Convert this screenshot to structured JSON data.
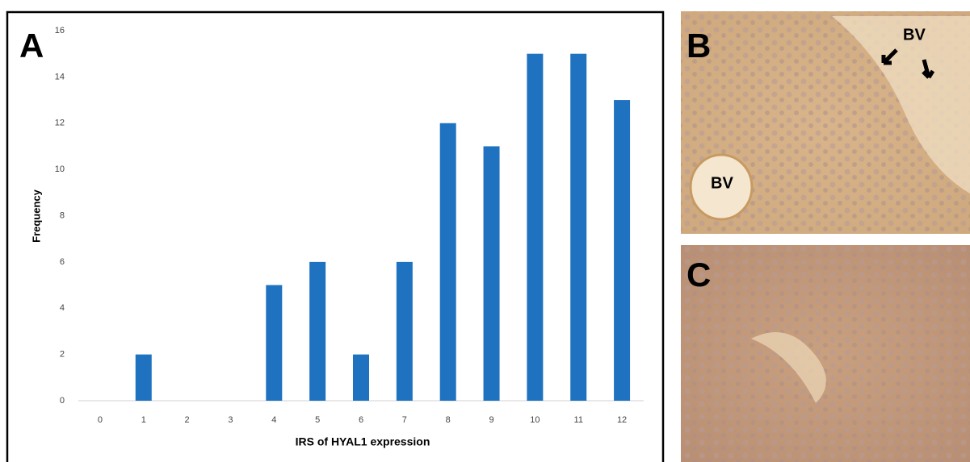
{
  "chart_data": {
    "type": "bar",
    "panel_label": "A",
    "categories": [
      0,
      1,
      2,
      3,
      4,
      5,
      6,
      7,
      8,
      9,
      10,
      11,
      12
    ],
    "values": [
      0,
      2,
      0,
      0,
      5,
      6,
      2,
      6,
      12,
      11,
      15,
      15,
      13
    ],
    "color": "#1f72c0",
    "ylim": [
      0,
      16
    ],
    "yticks": [
      0,
      2,
      4,
      6,
      8,
      10,
      12,
      14,
      16
    ],
    "xlabel": "IRS of HYAL1 expression",
    "ylabel": "Frequency",
    "grid": false
  },
  "panels": [
    {
      "label": "B",
      "annotations": [
        "BV",
        "BV"
      ]
    },
    {
      "label": "C"
    }
  ]
}
